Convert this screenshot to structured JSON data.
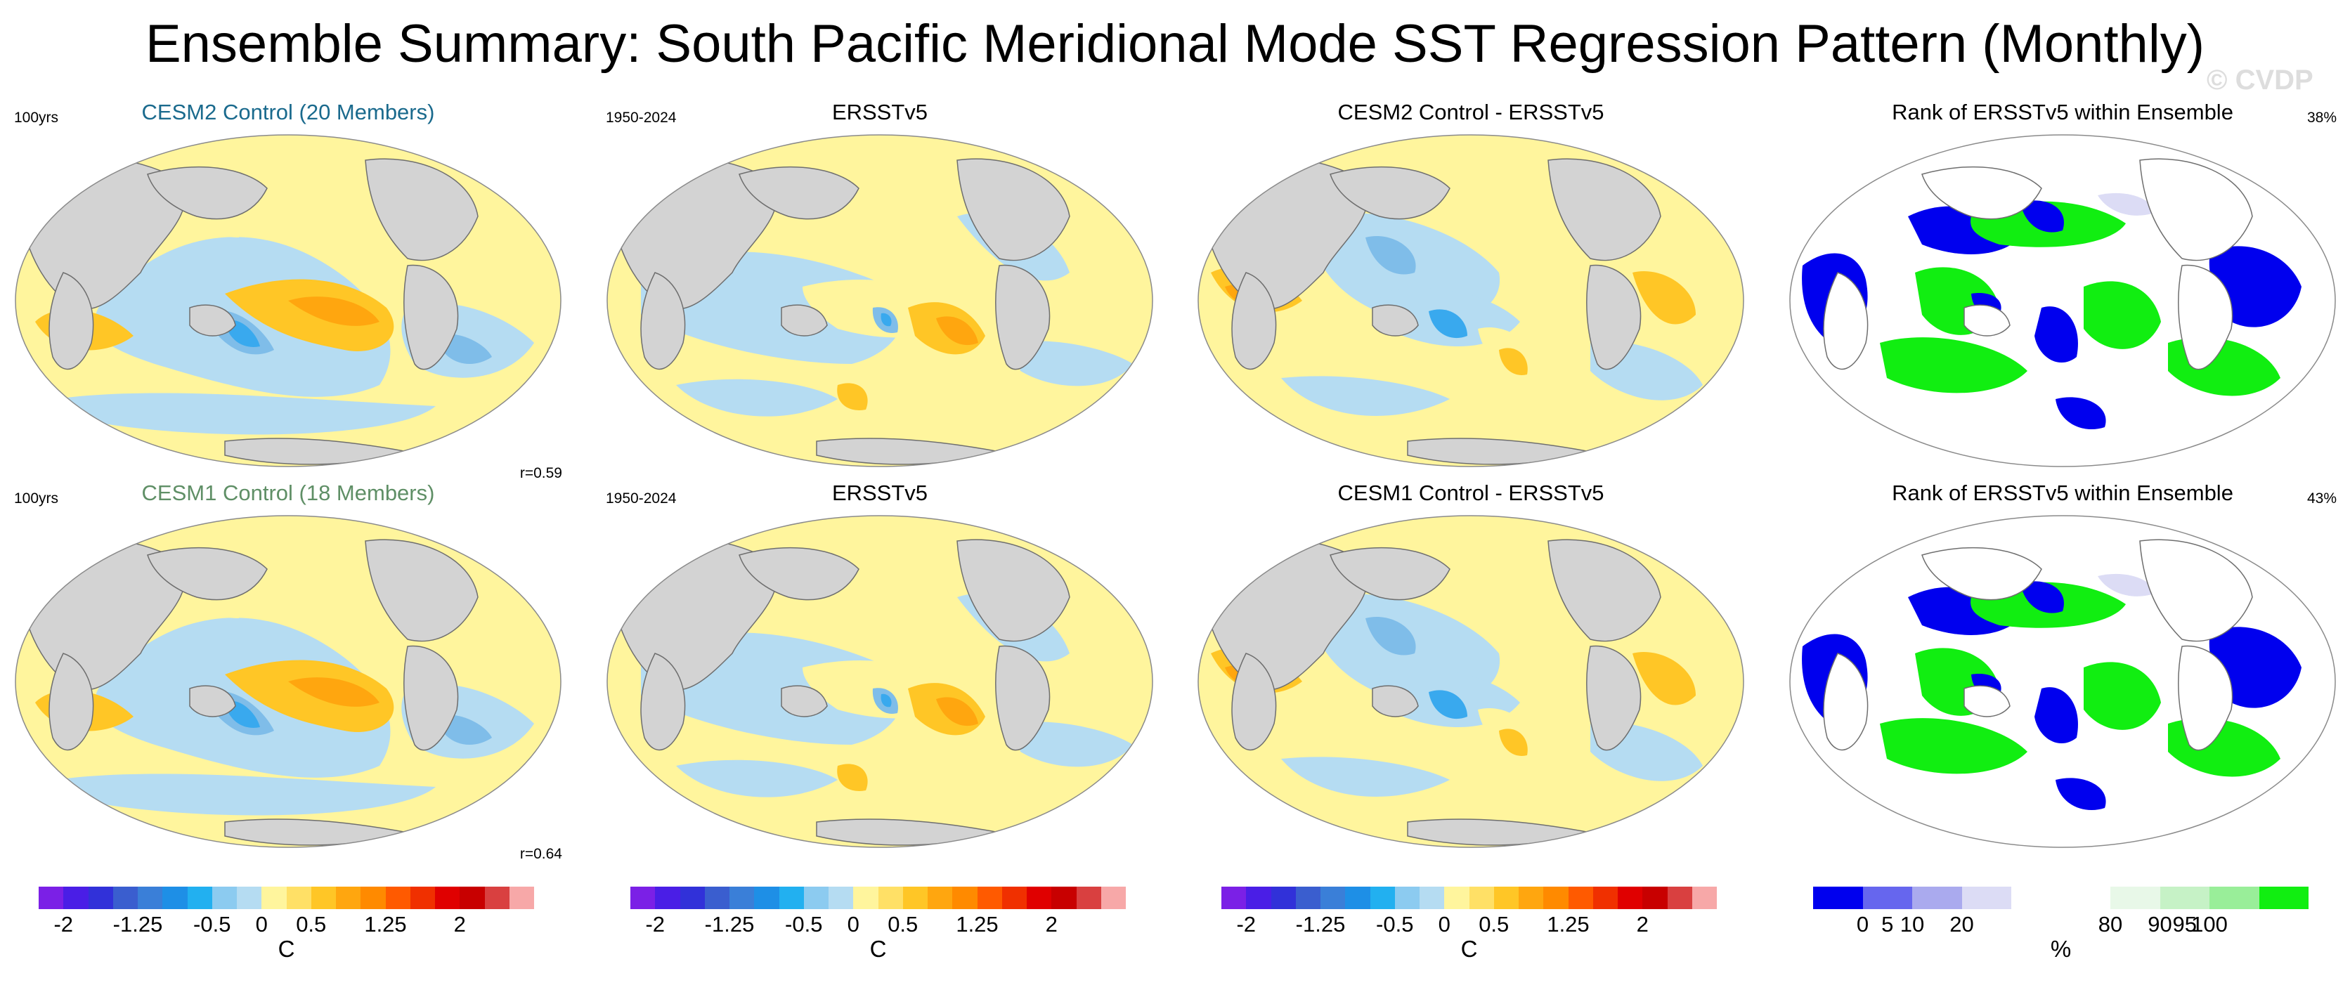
{
  "figure_title": "Ensemble Summary: South Pacific Meridional Mode SST Regression Pattern (Monthly)",
  "watermark": "© CVDP",
  "colors": {
    "ocean_pos1": "#fff59d",
    "ocean_pos2": "#ffc626",
    "ocean_pos3": "#ffa60f",
    "ocean_neg1": "#b5dcf2",
    "ocean_neg2": "#7fbde9",
    "ocean_neg3": "#39a9ee",
    "land": "#d3d3d3",
    "coast": "#6e6e6e",
    "rank_blue": "#0000ee",
    "rank_green": "#11ee11",
    "rank_lav": "#dcdcf5",
    "row1_label": "#1a6a8d",
    "row2_label": "#5f8f66"
  },
  "chart_data": [
    {
      "type": "heatmap",
      "panel_title": "CESM2 Control (20 Members)",
      "title_color": "#1a6a8d",
      "left_label": "100yrs",
      "right_label": "",
      "corr_label": "r=0.59",
      "colorbar": "sst",
      "pattern": "model"
    },
    {
      "type": "heatmap",
      "panel_title": "ERSSTv5",
      "title_color": "#000000",
      "left_label": "1950-2024",
      "right_label": "",
      "corr_label": "",
      "colorbar": "sst",
      "pattern": "obs"
    },
    {
      "type": "heatmap",
      "panel_title": "CESM2 Control - ERSSTv5",
      "title_color": "#000000",
      "left_label": "",
      "right_label": "",
      "corr_label": "",
      "colorbar": "sst",
      "pattern": "diff"
    },
    {
      "type": "heatmap",
      "panel_title": "Rank of ERSSTv5 within Ensemble",
      "title_color": "#000000",
      "left_label": "",
      "right_label": "38%",
      "corr_label": "",
      "colorbar": "rank",
      "pattern": "rank"
    },
    {
      "type": "heatmap",
      "panel_title": "CESM1 Control (18 Members)",
      "title_color": "#5f8f66",
      "left_label": "100yrs",
      "right_label": "",
      "corr_label": "r=0.64",
      "colorbar": "sst",
      "pattern": "model"
    },
    {
      "type": "heatmap",
      "panel_title": "ERSSTv5",
      "title_color": "#000000",
      "left_label": "1950-2024",
      "right_label": "",
      "corr_label": "",
      "colorbar": "sst",
      "pattern": "obs"
    },
    {
      "type": "heatmap",
      "panel_title": "CESM1 Control - ERSSTv5",
      "title_color": "#000000",
      "left_label": "",
      "right_label": "",
      "corr_label": "",
      "colorbar": "sst",
      "pattern": "diff"
    },
    {
      "type": "heatmap",
      "panel_title": "Rank of ERSSTv5 within Ensemble",
      "title_color": "#000000",
      "left_label": "",
      "right_label": "43%",
      "corr_label": "",
      "colorbar": "rank",
      "pattern": "rank"
    }
  ],
  "colorbars": {
    "sst": {
      "unit": "C",
      "levels": [
        -2.5,
        -2.25,
        -2,
        -1.75,
        -1.5,
        -1.25,
        -1,
        -0.75,
        -0.5,
        -0.25,
        0,
        0.25,
        0.5,
        0.75,
        1,
        1.25,
        1.5,
        1.75,
        2,
        2.25,
        2.5
      ],
      "colors": [
        "#7b20e6",
        "#4a1ee6",
        "#3131d9",
        "#3a5ecf",
        "#3a7fd8",
        "#1e8fe6",
        "#22b0f0",
        "#8ccbf0",
        "#b5dcf2",
        "#fff59d",
        "#ffe066",
        "#ffc626",
        "#ffa60f",
        "#ff8a00",
        "#ff5a00",
        "#f03000",
        "#e00000",
        "#c80000",
        "#d94040",
        "#f7a8a8"
      ],
      "tick_labels": [
        "-2",
        "-1.25",
        "-0.5",
        "0",
        "0.5",
        "1.25",
        "2"
      ],
      "tick_values": [
        -2,
        -1.25,
        -0.5,
        0,
        0.5,
        1.25,
        2
      ]
    },
    "rank": {
      "unit": "%",
      "colors": [
        "#0000ee",
        "#6666ee",
        "#aaaaee",
        "#dcdcf5",
        "#ffffff",
        "#ffffff",
        "#e8f8e8",
        "#c6f2c6",
        "#99ee99",
        "#11ee11"
      ],
      "tick_labels": [
        "0",
        "5",
        "10",
        "20",
        "80",
        "90",
        "95",
        "100"
      ],
      "tick_positions": [
        1,
        1.5,
        2,
        3,
        6,
        7,
        7.5,
        8
      ]
    }
  }
}
